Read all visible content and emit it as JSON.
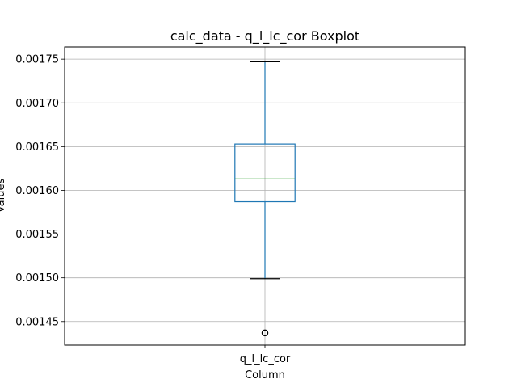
{
  "chart_data": {
    "type": "boxplot",
    "title": "calc_data - q_l_lc_cor Boxplot",
    "xlabel": "Column",
    "ylabel": "Values",
    "categories": [
      "q_l_lc_cor"
    ],
    "series": [
      {
        "whisker_low": 0.001499,
        "q1": 0.001587,
        "median": 0.001613,
        "q3": 0.001653,
        "whisker_high": 0.001747,
        "outliers": [
          0.001437
        ]
      }
    ],
    "ylim": [
      0.001423,
      0.001764
    ],
    "yticks": [
      0.00145,
      0.0015,
      0.00155,
      0.0016,
      0.00165,
      0.0017,
      0.00175
    ],
    "ytick_labels": [
      "0.00145",
      "0.00150",
      "0.00155",
      "0.00160",
      "0.00165",
      "0.00170",
      "0.00175"
    ],
    "grid": true,
    "colors": {
      "box": "#1f77b4",
      "median": "#2ca02c",
      "whisker": "#1f77b4",
      "cap": "#000000",
      "grid": "#b0b0b0",
      "frame": "#000000"
    }
  }
}
